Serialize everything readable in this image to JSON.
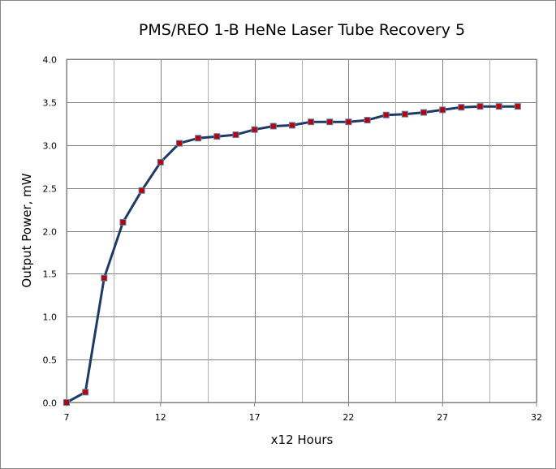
{
  "chart_data": {
    "type": "line",
    "title": "PMS/REO  1-B HeNe Laser Tube Recovery 5",
    "xlabel": "x12 Hours",
    "ylabel": "Output Power, mW",
    "xlim": [
      7,
      32
    ],
    "ylim": [
      0,
      4.0
    ],
    "x_ticks": [
      "7",
      "12",
      "17",
      "22",
      "27",
      "32"
    ],
    "y_ticks": [
      "0.0",
      "0.5",
      "1.0",
      "1.5",
      "2.0",
      "2.5",
      "3.0",
      "3.5",
      "4.0"
    ],
    "grid": true,
    "series": [
      {
        "name": "Output Power",
        "line_color": "#1f3a64",
        "marker_color": "#c00000",
        "marker_edge": "#4f81bd",
        "x": [
          7,
          8,
          9,
          10,
          11,
          12,
          13,
          14,
          15,
          16,
          17,
          18,
          19,
          20,
          21,
          22,
          23,
          24,
          25,
          26,
          27,
          28,
          29,
          30,
          31
        ],
        "y": [
          0.0,
          0.12,
          1.45,
          2.1,
          2.47,
          2.8,
          3.02,
          3.08,
          3.1,
          3.12,
          3.18,
          3.22,
          3.23,
          3.27,
          3.27,
          3.27,
          3.29,
          3.35,
          3.36,
          3.38,
          3.41,
          3.44,
          3.45,
          3.45,
          3.45
        ]
      }
    ]
  }
}
